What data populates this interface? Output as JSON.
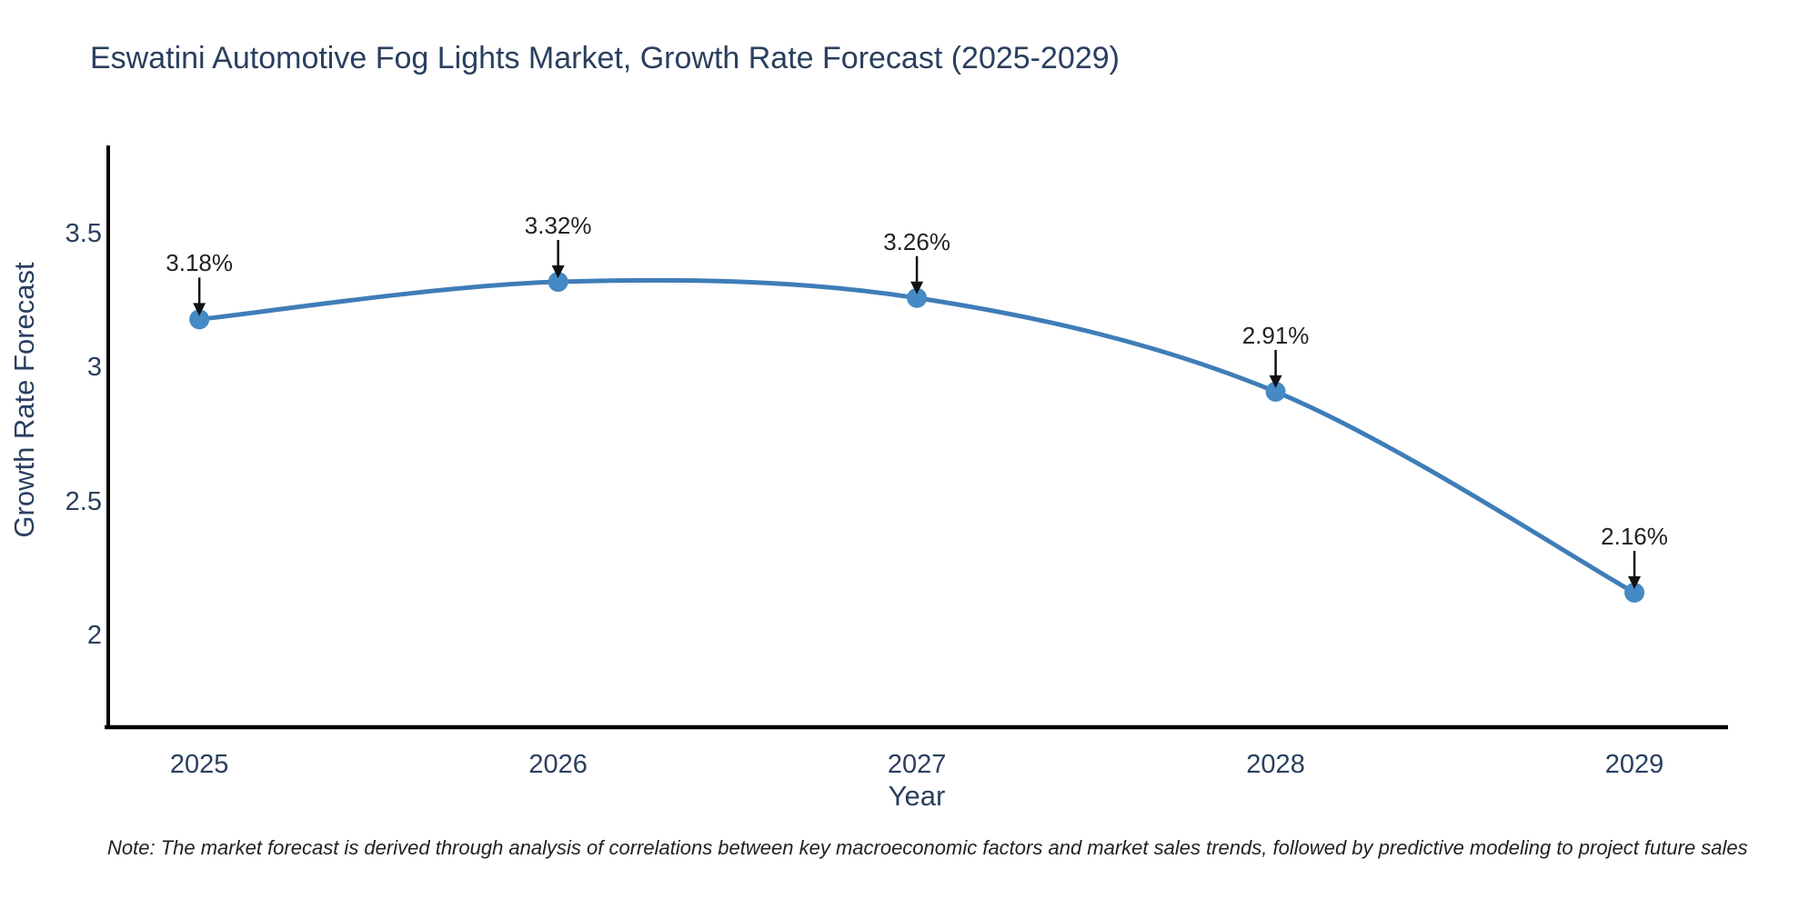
{
  "chart_data": {
    "type": "line",
    "title": "Eswatini Automotive Fog Lights Market, Growth Rate Forecast (2025-2029)",
    "xlabel": "Year",
    "ylabel": "Growth Rate Forecast",
    "x": [
      2025,
      2026,
      2027,
      2028,
      2029
    ],
    "series": [
      {
        "name": "Growth Rate Forecast",
        "values": [
          3.18,
          3.32,
          3.26,
          2.91,
          2.16
        ]
      }
    ],
    "point_labels": [
      "3.18%",
      "3.32%",
      "3.26%",
      "2.91%",
      "2.16%"
    ],
    "x_tick_labels": [
      "2025",
      "2026",
      "2027",
      "2028",
      "2029"
    ],
    "y_ticks": [
      3.5,
      3,
      2.5,
      2
    ],
    "y_tick_labels": [
      "3.5",
      "3",
      "2.5",
      "2"
    ],
    "x_range": [
      2024.741,
      2029.261
    ],
    "y_range": [
      1.658,
      3.829
    ],
    "line_shape": "spline",
    "grid": false,
    "legend": "none",
    "colors": {
      "line": "#3f7db8",
      "marker": "#4589c5",
      "axis": "#000000",
      "axis_text": "#2a3f5f",
      "annotation": "#111111",
      "background": "#ffffff"
    }
  },
  "note": {
    "text": "Note: The market forecast is derived through analysis of correlations between key macroeconomic factors and market sales trends, followed by predictive modeling to project future sales"
  }
}
